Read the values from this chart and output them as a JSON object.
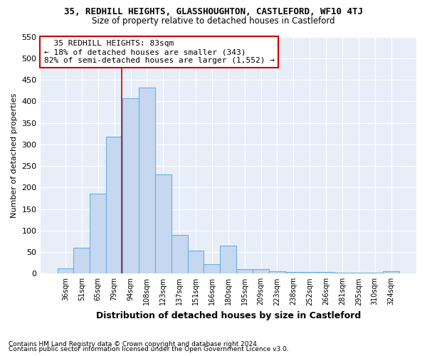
{
  "title": "35, REDHILL HEIGHTS, GLASSHOUGHTON, CASTLEFORD, WF10 4TJ",
  "subtitle": "Size of property relative to detached houses in Castleford",
  "xlabel": "Distribution of detached houses by size in Castleford",
  "ylabel": "Number of detached properties",
  "categories": [
    "36sqm",
    "51sqm",
    "65sqm",
    "79sqm",
    "94sqm",
    "108sqm",
    "123sqm",
    "137sqm",
    "151sqm",
    "166sqm",
    "180sqm",
    "195sqm",
    "209sqm",
    "223sqm",
    "238sqm",
    "252sqm",
    "266sqm",
    "281sqm",
    "295sqm",
    "310sqm",
    "324sqm"
  ],
  "values": [
    12,
    60,
    185,
    318,
    407,
    432,
    230,
    90,
    53,
    22,
    65,
    10,
    10,
    5,
    3,
    3,
    3,
    2,
    2,
    2,
    5
  ],
  "bar_color": "#c5d8f0",
  "bar_edge_color": "#6aaee0",
  "marker_line_category_index": 3.47,
  "annotation_line1": "  35 REDHILL HEIGHTS: 83sqm",
  "annotation_line2": "← 18% of detached houses are smaller (343)",
  "annotation_line3": "82% of semi-detached houses are larger (1,552) →",
  "annotation_box_color": "#ffffff",
  "annotation_box_edge_color": "#cc0000",
  "vline_color": "#cc0000",
  "ylim": [
    0,
    550
  ],
  "yticks": [
    0,
    50,
    100,
    150,
    200,
    250,
    300,
    350,
    400,
    450,
    500,
    550
  ],
  "footer1": "Contains HM Land Registry data © Crown copyright and database right 2024.",
  "footer2": "Contains public sector information licensed under the Open Government Licence v3.0.",
  "bg_color": "#ffffff",
  "plot_bg_color": "#e8eef8",
  "grid_color": "#ffffff",
  "title_fontsize": 9,
  "subtitle_fontsize": 8.5
}
